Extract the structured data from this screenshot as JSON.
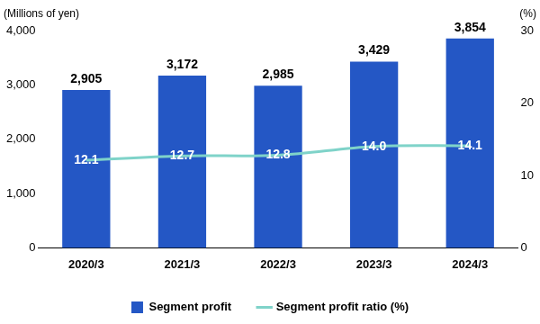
{
  "chart_data": {
    "type": "bar",
    "ylabel": "(Millions of yen)",
    "y2label": "(%)",
    "categories": [
      "2020/3",
      "2021/3",
      "2022/3",
      "2023/3",
      "2024/3"
    ],
    "series": [
      {
        "name": "Segment profit",
        "type": "bar",
        "color": "#2457c5",
        "values": [
          2905,
          3172,
          2985,
          3429,
          3854
        ],
        "value_labels": [
          "2,905",
          "3,172",
          "2,985",
          "3,429",
          "3,854"
        ],
        "data_labels": true
      },
      {
        "name": "Segment profit ratio (%)",
        "type": "line",
        "color": "#7fd3c9",
        "axis": "y2",
        "values": [
          12.1,
          12.7,
          12.8,
          14.0,
          14.1
        ],
        "value_labels": [
          "12.1",
          "12.7",
          "12.8",
          "14.0",
          "14.1"
        ],
        "data_labels": true
      }
    ],
    "ylim": [
      0,
      4000
    ],
    "yticks": [
      0,
      {
        "value": 1000,
        "label": "1,000"
      },
      {
        "value": 2000,
        "label": "2,000"
      },
      {
        "value": 3000,
        "label": "3,000"
      },
      {
        "value": 4000,
        "label": "4,000"
      }
    ],
    "y2lim": [
      0,
      30
    ],
    "y2ticks": [
      0,
      10,
      20,
      30
    ],
    "grid": false,
    "legend": "bottom"
  }
}
